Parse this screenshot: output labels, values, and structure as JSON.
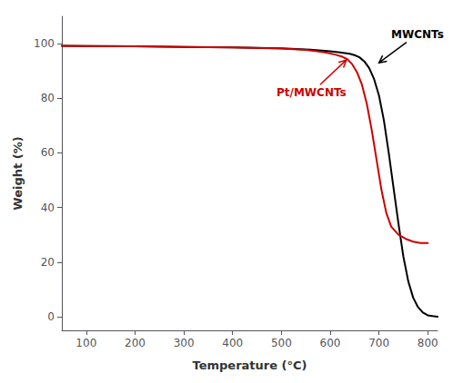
{
  "chart_data": {
    "type": "line",
    "xlabel": "Temperature (°C)",
    "ylabel": "Weight (%)",
    "series": [
      {
        "color": "#000000",
        "x": [
          50,
          100,
          200,
          300,
          400,
          500,
          560,
          600,
          620,
          640,
          650,
          660,
          670,
          680,
          690,
          700,
          710,
          720,
          730,
          740,
          750,
          760,
          770,
          780,
          790,
          800,
          810,
          820
        ],
        "values": [
          99.2,
          99.1,
          99.0,
          98.8,
          98.6,
          98.3,
          97.8,
          97.2,
          96.8,
          96.3,
          95.8,
          95.0,
          93.5,
          91.0,
          87.0,
          81.0,
          72.0,
          60.0,
          47.0,
          34.0,
          22.0,
          13.0,
          7.0,
          3.5,
          1.5,
          0.5,
          0.2,
          0.0
        ]
      },
      {
        "color": "#cc0000",
        "x": [
          50,
          100,
          200,
          300,
          400,
          500,
          550,
          570,
          590,
          610,
          625,
          635,
          645,
          655,
          665,
          675,
          685,
          695,
          705,
          715,
          725,
          740,
          755,
          770,
          785,
          800
        ],
        "values": [
          99.2,
          99.1,
          99.0,
          98.8,
          98.6,
          98.2,
          97.7,
          97.3,
          96.8,
          96.0,
          95.2,
          94.3,
          92.5,
          89.5,
          85.0,
          78.0,
          68.5,
          57.5,
          46.5,
          38.0,
          33.0,
          30.0,
          28.5,
          27.5,
          27.0,
          27.0
        ]
      }
    ],
    "xlim": [
      50,
      820
    ],
    "ylim": [
      -5,
      110
    ],
    "xticks": [
      100,
      200,
      300,
      400,
      500,
      600,
      700,
      800
    ],
    "yticks": [
      0,
      20,
      40,
      60,
      80,
      100
    ],
    "grid": false,
    "annotations": [
      {
        "text": "MWCNTs",
        "xy": [
          700,
          93.0
        ],
        "xytext": [
          725,
          103.5
        ],
        "color": "#000000"
      },
      {
        "text": "Pt/MWCNTs",
        "xy": [
          633,
          94.0
        ],
        "xytext": [
          490,
          82.0
        ],
        "color": "#cc0000"
      }
    ]
  }
}
